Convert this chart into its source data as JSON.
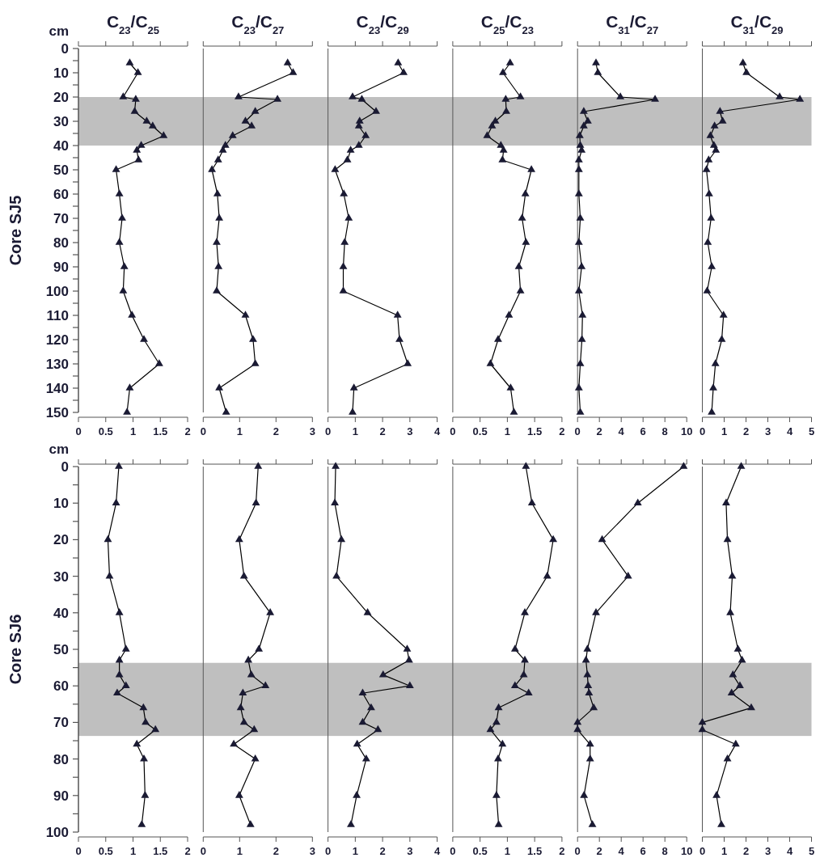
{
  "chart_data": [
    {
      "type": "line",
      "title": "C$_{23}$/C$_{25}$",
      "ylabel": "Core SJ5",
      "annotations": [
        "cm"
      ],
      "marker": "triangle",
      "xlim": [
        0,
        2
      ],
      "xticks": [
        0,
        0.5,
        1,
        1.5,
        2
      ],
      "ylim": [
        150,
        0
      ],
      "yticks": [
        0,
        {
          "value": 5,
          "label": null
        },
        10,
        {
          "value": 15,
          "label": null
        },
        20,
        {
          "value": 25,
          "label": null
        },
        30,
        {
          "value": 35,
          "label": null
        },
        40,
        {
          "value": 45,
          "label": null
        },
        50,
        {
          "value": 55,
          "label": null
        },
        60,
        {
          "value": 65,
          "label": null
        },
        70,
        {
          "value": 75,
          "label": null
        },
        80,
        {
          "value": 85,
          "label": null
        },
        90,
        {
          "value": 95,
          "label": null
        },
        100,
        {
          "value": 105,
          "label": null
        },
        110,
        {
          "value": 115,
          "label": null
        },
        120,
        {
          "value": 125,
          "label": null
        },
        130,
        {
          "value": 135,
          "label": null
        },
        140,
        {
          "value": 145,
          "label": null
        },
        150
      ],
      "bands": [
        {
          "axis": "y",
          "from": 20,
          "to": 40,
          "color": "#bfbfbf"
        }
      ],
      "series": [
        {
          "color": "#1a1a33",
          "x": [
            0.94,
            1.09,
            0.82,
            1.05,
            1.03,
            1.25,
            1.36,
            1.56,
            1.15,
            1.07,
            1.1,
            0.69,
            0.75,
            0.8,
            0.75,
            0.84,
            0.82,
            0.98,
            1.2,
            1.48,
            0.94,
            0.89
          ],
          "values": [
            6,
            10,
            20,
            21,
            26,
            30,
            32,
            36,
            40,
            42,
            46,
            50,
            60,
            70,
            80,
            90,
            100,
            110,
            120,
            130,
            140,
            150
          ]
        }
      ]
    },
    {
      "type": "line",
      "title": "C$_{23}$/C$_{27}$",
      "tick_labels": "x",
      "marker": "triangle",
      "xlim": [
        0,
        3
      ],
      "xticks": [
        0,
        1,
        2,
        3
      ],
      "ylim": [
        150,
        0
      ],
      "bands": [
        {
          "axis": "y",
          "from": 20,
          "to": 40,
          "color": "#bfbfbf"
        }
      ],
      "series": [
        {
          "color": "#1a1a33",
          "x": [
            2.32,
            2.47,
            0.97,
            2.04,
            1.43,
            1.16,
            1.33,
            0.81,
            0.61,
            0.54,
            0.41,
            0.24,
            0.39,
            0.44,
            0.37,
            0.42,
            0.37,
            1.16,
            1.37,
            1.43,
            0.44,
            0.63
          ],
          "values": [
            6,
            10,
            20,
            21,
            26,
            30,
            32,
            36,
            40,
            42,
            46,
            50,
            60,
            70,
            80,
            90,
            100,
            110,
            120,
            130,
            140,
            150
          ]
        }
      ]
    },
    {
      "type": "line",
      "title": "C$_{23}$/C$_{29}$",
      "tick_labels": "x",
      "marker": "triangle",
      "xlim": [
        0,
        4
      ],
      "xticks": [
        0,
        1,
        2,
        3,
        4
      ],
      "ylim": [
        150,
        0
      ],
      "bands": [
        {
          "axis": "y",
          "from": 20,
          "to": 40,
          "color": "#bfbfbf"
        }
      ],
      "series": [
        {
          "color": "#1a1a33",
          "x": [
            2.57,
            2.77,
            0.9,
            1.24,
            1.76,
            1.16,
            1.13,
            1.38,
            1.13,
            0.83,
            0.71,
            0.26,
            0.58,
            0.76,
            0.61,
            0.56,
            0.56,
            2.55,
            2.62,
            2.92,
            0.95,
            0.9
          ],
          "values": [
            6,
            10,
            20,
            21,
            26,
            30,
            32,
            36,
            40,
            42,
            46,
            50,
            60,
            70,
            80,
            90,
            100,
            110,
            120,
            130,
            140,
            150
          ]
        }
      ]
    },
    {
      "type": "line",
      "title": "C$_{25}$/C$_{23}$",
      "tick_labels": "x",
      "marker": "triangle",
      "xlim": [
        0,
        2
      ],
      "xticks": [
        0,
        0.5,
        1,
        1.5,
        2
      ],
      "ylim": [
        150,
        0
      ],
      "bands": [
        {
          "axis": "y",
          "from": 20,
          "to": 40,
          "color": "#bfbfbf"
        }
      ],
      "series": [
        {
          "color": "#1a1a33",
          "x": [
            1.05,
            0.92,
            1.24,
            0.97,
            0.98,
            0.78,
            0.72,
            0.63,
            0.88,
            0.93,
            0.91,
            1.44,
            1.33,
            1.27,
            1.34,
            1.21,
            1.24,
            1.03,
            0.83,
            0.69,
            1.06,
            1.12
          ],
          "values": [
            6,
            10,
            20,
            21,
            26,
            30,
            32,
            36,
            40,
            42,
            46,
            50,
            60,
            70,
            80,
            90,
            100,
            110,
            120,
            130,
            140,
            150
          ]
        }
      ]
    },
    {
      "type": "line",
      "title": "C$_{31}$/C$_{27}$",
      "tick_labels": "x",
      "marker": "triangle",
      "xlim": [
        0,
        10
      ],
      "xticks": [
        0,
        2,
        4,
        6,
        8,
        10
      ],
      "ylim": [
        150,
        0
      ],
      "bands": [
        {
          "axis": "y",
          "from": 20,
          "to": 40,
          "color": "#bfbfbf"
        }
      ],
      "series": [
        {
          "color": "#1a1a33",
          "x": [
            1.69,
            1.86,
            3.92,
            7.1,
            0.57,
            0.94,
            0.57,
            0.2,
            0.25,
            0.37,
            0.12,
            0.12,
            0.12,
            0.25,
            0.12,
            0.37,
            0.12,
            0.45,
            0.4,
            0.25,
            0.12,
            0.25
          ],
          "values": [
            6,
            10,
            20,
            21,
            26,
            30,
            32,
            36,
            40,
            42,
            46,
            50,
            60,
            70,
            80,
            90,
            100,
            110,
            120,
            130,
            140,
            150
          ]
        }
      ]
    },
    {
      "type": "line",
      "title": "C$_{31}$/C$_{29}$",
      "tick_labels": "x",
      "marker": "triangle",
      "xlim": [
        0,
        5
      ],
      "xticks": [
        0,
        1,
        2,
        3,
        4,
        5
      ],
      "ylim": [
        150,
        0
      ],
      "bands": [
        {
          "axis": "y",
          "from": 20,
          "to": 40,
          "color": "#bfbfbf"
        }
      ],
      "series": [
        {
          "color": "#1a1a33",
          "x": [
            1.86,
            2.02,
            3.54,
            4.47,
            0.81,
            0.93,
            0.56,
            0.37,
            0.53,
            0.62,
            0.29,
            0.19,
            0.31,
            0.4,
            0.25,
            0.43,
            0.22,
            0.97,
            0.89,
            0.6,
            0.5,
            0.43
          ],
          "values": [
            6,
            10,
            20,
            21,
            26,
            30,
            32,
            36,
            40,
            42,
            46,
            50,
            60,
            70,
            80,
            90,
            100,
            110,
            120,
            130,
            140,
            150
          ]
        }
      ]
    },
    {
      "type": "line",
      "ylabel": "Core SJ6",
      "annotations": [
        "cm"
      ],
      "marker": "triangle",
      "xlim": [
        0,
        2
      ],
      "xticks": [
        0,
        0.5,
        1,
        1.5,
        2
      ],
      "ylim": [
        100,
        0
      ],
      "yticks": [
        0,
        {
          "value": 5,
          "label": null
        },
        10,
        {
          "value": 15,
          "label": null
        },
        20,
        {
          "value": 25,
          "label": null
        },
        30,
        {
          "value": 35,
          "label": null
        },
        40,
        {
          "value": 45,
          "label": null
        },
        50,
        {
          "value": 55,
          "label": null
        },
        60,
        {
          "value": 65,
          "label": null
        },
        70,
        {
          "value": 75,
          "label": null
        },
        80,
        {
          "value": 85,
          "label": null
        },
        90,
        {
          "value": 95,
          "label": null
        },
        100
      ],
      "bands": [
        {
          "axis": "y",
          "from": 53.7,
          "to": 73.7,
          "color": "#bfbfbf"
        }
      ],
      "series": [
        {
          "color": "#1a1a33",
          "x": [
            0.74,
            0.69,
            0.54,
            0.57,
            0.75,
            0.87,
            0.75,
            0.75,
            0.87,
            0.71,
            1.19,
            1.23,
            1.41,
            1.07,
            1.2,
            1.22,
            1.16
          ],
          "values": [
            0,
            10,
            20,
            30,
            40,
            50,
            53,
            57,
            60,
            62,
            66,
            70,
            72,
            76,
            80,
            90,
            98
          ]
        }
      ]
    },
    {
      "type": "line",
      "tick_labels": "x",
      "marker": "triangle",
      "xlim": [
        0,
        3
      ],
      "xticks": [
        0,
        1,
        2,
        3
      ],
      "ylim": [
        100,
        0
      ],
      "bands": [
        {
          "axis": "y",
          "from": 53.7,
          "to": 73.7,
          "color": "#bfbfbf"
        }
      ],
      "series": [
        {
          "color": "#1a1a33",
          "x": [
            1.51,
            1.45,
            0.99,
            1.12,
            1.84,
            1.53,
            1.24,
            1.32,
            1.71,
            1.09,
            1.03,
            1.12,
            1.4,
            0.84,
            1.43,
            0.99,
            1.3
          ],
          "values": [
            0,
            10,
            20,
            30,
            40,
            50,
            53,
            57,
            60,
            62,
            66,
            70,
            72,
            76,
            80,
            90,
            98
          ]
        }
      ]
    },
    {
      "type": "line",
      "tick_labels": "x",
      "marker": "triangle",
      "xlim": [
        0,
        4
      ],
      "xticks": [
        0,
        1,
        2,
        3,
        4
      ],
      "ylim": [
        100,
        0
      ],
      "bands": [
        {
          "axis": "y",
          "from": 53.7,
          "to": 73.7,
          "color": "#bfbfbf"
        }
      ],
      "series": [
        {
          "color": "#1a1a33",
          "x": [
            0.28,
            0.25,
            0.49,
            0.31,
            1.45,
            2.9,
            2.97,
            2.02,
            3.0,
            1.27,
            1.58,
            1.27,
            1.83,
            1.07,
            1.4,
            1.05,
            0.84
          ],
          "values": [
            0,
            10,
            20,
            30,
            40,
            50,
            53,
            57,
            60,
            62,
            66,
            70,
            72,
            76,
            80,
            90,
            98
          ]
        }
      ]
    },
    {
      "type": "line",
      "tick_labels": "x",
      "marker": "triangle",
      "xlim": [
        0,
        2
      ],
      "xticks": [
        0,
        0.5,
        1,
        1.5,
        2
      ],
      "ylim": [
        100,
        0
      ],
      "bands": [
        {
          "axis": "y",
          "from": 53.7,
          "to": 73.7,
          "color": "#bfbfbf"
        }
      ],
      "series": [
        {
          "color": "#1a1a33",
          "x": [
            1.34,
            1.45,
            1.84,
            1.73,
            1.32,
            1.14,
            1.32,
            1.3,
            1.14,
            1.39,
            0.84,
            0.8,
            0.69,
            0.91,
            0.83,
            0.8,
            0.84
          ],
          "values": [
            0,
            10,
            20,
            30,
            40,
            50,
            53,
            57,
            60,
            62,
            66,
            70,
            72,
            76,
            80,
            90,
            98
          ]
        }
      ]
    },
    {
      "type": "line",
      "tick_labels": "x",
      "marker": "triangle",
      "xlim": [
        0,
        10
      ],
      "xticks": [
        0,
        2,
        4,
        6,
        8,
        10
      ],
      "ylim": [
        100,
        0
      ],
      "bands": [
        {
          "axis": "y",
          "from": 53.7,
          "to": 73.7,
          "color": "#bfbfbf"
        }
      ],
      "series": [
        {
          "color": "#1a1a33",
          "x": [
            9.72,
            5.52,
            2.25,
            4.63,
            1.69,
            0.9,
            0.77,
            0.9,
            0.97,
            1.05,
            1.48,
            0,
            0,
            1.15,
            1.15,
            0.59,
            1.36
          ],
          "values": [
            0,
            10,
            20,
            30,
            40,
            50,
            53,
            57,
            60,
            62,
            66,
            70,
            72,
            76,
            80,
            90,
            98
          ]
        }
      ]
    },
    {
      "type": "line",
      "tick_labels": "x",
      "marker": "triangle",
      "xlim": [
        0,
        5
      ],
      "xticks": [
        0,
        1,
        2,
        3,
        4,
        5
      ],
      "ylim": [
        100,
        0
      ],
      "bands": [
        {
          "axis": "y",
          "from": 53.7,
          "to": 73.7,
          "color": "#bfbfbf"
        }
      ],
      "series": [
        {
          "color": "#1a1a33",
          "x": [
            1.78,
            1.09,
            1.15,
            1.37,
            1.28,
            1.63,
            1.82,
            1.4,
            1.72,
            1.34,
            2.24,
            0,
            0,
            1.53,
            1.15,
            0.65,
            0.87
          ],
          "values": [
            0,
            10,
            20,
            30,
            40,
            50,
            53,
            57,
            60,
            62,
            66,
            70,
            72,
            76,
            80,
            90,
            98
          ]
        }
      ]
    }
  ]
}
